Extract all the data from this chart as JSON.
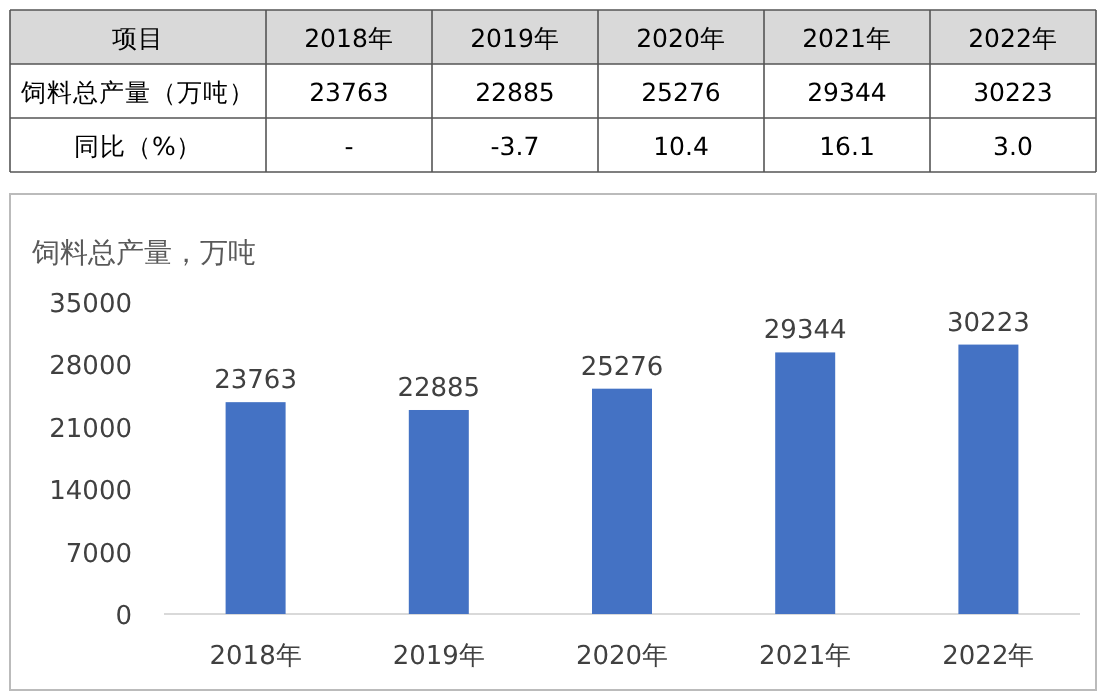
{
  "chart_data": {
    "type": "bar",
    "title": "饲料总产量，万吨",
    "categories": [
      "2018年",
      "2019年",
      "2020年",
      "2021年",
      "2022年"
    ],
    "values": [
      23763,
      22885,
      25276,
      29344,
      30223
    ],
    "color": "#4472c4",
    "ylim": [
      0,
      35000
    ],
    "yticks": [
      0,
      7000,
      14000,
      21000,
      28000,
      35000
    ],
    "data_labels": true,
    "annotations": [
      "项目",
      "饲料总产量（万吨）",
      "同比（%）",
      "23763",
      "22885",
      "25276",
      "29344",
      "30223",
      "-",
      "-3.7",
      "10.4",
      "16.1",
      "3.0"
    ]
  }
}
